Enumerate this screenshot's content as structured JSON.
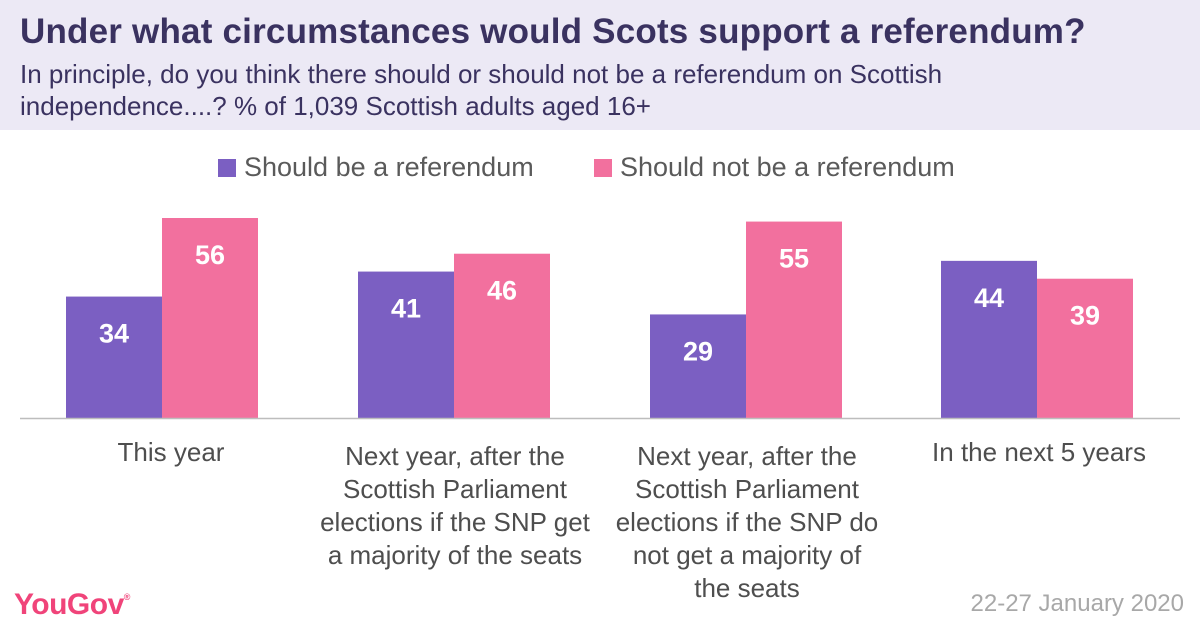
{
  "header": {
    "title": "Under what circumstances would Scots support a referendum?",
    "subtitle": "In principle, do you think there should or should not be a referendum on Scottish independence....? % of 1,039 Scottish adults aged 16+"
  },
  "footer": {
    "logo": "YouGov",
    "logo_mark": "®",
    "date": "22-27 January 2020"
  },
  "colors": {
    "should": "#7B5FC2",
    "should_not": "#F2709E",
    "header_bg": "#ECE9F5"
  },
  "chart_data": {
    "type": "bar",
    "title": "Under what circumstances would Scots support a referendum?",
    "categories": [
      "This year",
      "Next year, after the Scottish Parliament elections if the SNP get a majority of the seats",
      "Next year, after the Scottish Parliament elections if the SNP do not get a majority of the seats",
      "In the next 5 years"
    ],
    "series": [
      {
        "name": "Should be a referendum",
        "values": [
          34,
          41,
          29,
          44
        ]
      },
      {
        "name": "Should not be a referendum",
        "values": [
          56,
          46,
          55,
          39
        ]
      }
    ],
    "ylim": [
      0,
      56
    ],
    "legend": "top-center",
    "grid": false,
    "data_labels": true
  }
}
